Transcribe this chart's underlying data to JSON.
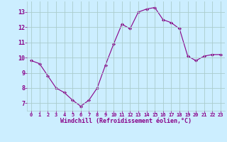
{
  "x": [
    0,
    1,
    2,
    3,
    4,
    5,
    6,
    7,
    8,
    9,
    10,
    11,
    12,
    13,
    14,
    15,
    16,
    17,
    18,
    19,
    20,
    21,
    22,
    23
  ],
  "y": [
    9.8,
    9.6,
    8.8,
    8.0,
    7.7,
    7.2,
    6.8,
    7.2,
    8.0,
    9.5,
    10.9,
    12.2,
    11.9,
    13.0,
    13.2,
    13.3,
    12.5,
    12.3,
    11.9,
    10.1,
    9.8,
    10.1,
    10.2,
    10.2
  ],
  "line_color": "#880088",
  "marker": "D",
  "marker_size": 2,
  "bg_color": "#cceeff",
  "grid_color": "#aacccc",
  "xlabel": "Windchill (Refroidissement éolien,°C)",
  "xlabel_color": "#880088",
  "tick_color": "#880088",
  "label_color": "#880088",
  "ylim": [
    6.5,
    13.7
  ],
  "xlim": [
    -0.5,
    23.5
  ],
  "yticks": [
    7,
    8,
    9,
    10,
    11,
    12,
    13
  ],
  "xticks": [
    0,
    1,
    2,
    3,
    4,
    5,
    6,
    7,
    8,
    9,
    10,
    11,
    12,
    13,
    14,
    15,
    16,
    17,
    18,
    19,
    20,
    21,
    22,
    23
  ]
}
